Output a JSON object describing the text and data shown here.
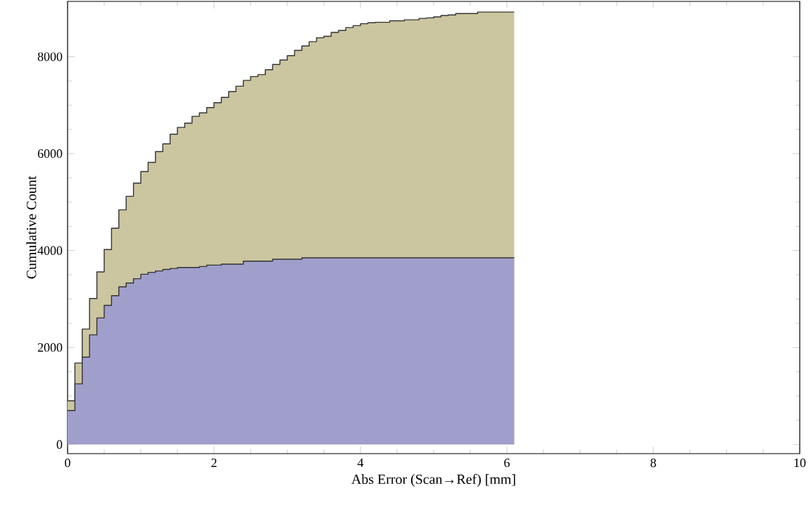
{
  "chart_data": {
    "type": "area",
    "xlabel": "Abs Error (Scan→Ref) [mm]",
    "ylabel": "Cumulative Count",
    "x": [
      0,
      0.1,
      0.1,
      0.2,
      0.2,
      0.3,
      0.3,
      0.4,
      0.4,
      0.5,
      0.5,
      0.6,
      0.6,
      0.7,
      0.7,
      0.8,
      0.8,
      0.9,
      0.9,
      1.0,
      1.0,
      1.1,
      1.1,
      1.2,
      1.2,
      1.3,
      1.3,
      1.4,
      1.4,
      1.5,
      1.5,
      1.6,
      1.6,
      1.7,
      1.7,
      1.8,
      1.8,
      1.9,
      1.9,
      2.0,
      2.0,
      2.1,
      2.1,
      2.2,
      2.2,
      2.3,
      2.3,
      2.4,
      2.4,
      2.5,
      2.5,
      2.6,
      2.6,
      2.7,
      2.7,
      2.8,
      2.8,
      2.9,
      2.9,
      3.0,
      3.0,
      3.1,
      3.1,
      3.2,
      3.2,
      3.3,
      3.3,
      3.4,
      3.4,
      3.5,
      3.5,
      3.6,
      3.6,
      3.7,
      3.7,
      3.8,
      3.8,
      3.9,
      3.9,
      4.0,
      4.0,
      4.1,
      4.1,
      4.2,
      4.2,
      4.3,
      4.3,
      4.4,
      4.4,
      4.5,
      4.5,
      4.6,
      4.6,
      4.7,
      4.7,
      4.8,
      4.8,
      4.9,
      4.9,
      5.0,
      5.0,
      5.1,
      5.1,
      5.2,
      5.2,
      5.3,
      5.3,
      5.4,
      5.4,
      5.5,
      5.5,
      5.6,
      5.6,
      5.7,
      5.7,
      5.8,
      5.8,
      5.9,
      5.9,
      6.0,
      6.0,
      6.1
    ],
    "series": [
      {
        "color": "#cbc5a0",
        "values": [
          900,
          900,
          1680,
          1680,
          2380,
          2380,
          3010,
          3010,
          3560,
          3560,
          4020,
          4020,
          4460,
          4460,
          4840,
          4840,
          5120,
          5120,
          5390,
          5390,
          5630,
          5630,
          5820,
          5820,
          6040,
          6040,
          6200,
          6200,
          6400,
          6400,
          6540,
          6540,
          6630,
          6630,
          6770,
          6770,
          6840,
          6840,
          6950,
          6950,
          7050,
          7050,
          7160,
          7160,
          7280,
          7280,
          7390,
          7390,
          7510,
          7510,
          7590,
          7590,
          7630,
          7630,
          7730,
          7730,
          7840,
          7840,
          7930,
          7930,
          8020,
          8020,
          8130,
          8130,
          8220,
          8220,
          8310,
          8310,
          8390,
          8390,
          8420,
          8420,
          8500,
          8500,
          8540,
          8540,
          8600,
          8600,
          8640,
          8640,
          8680,
          8680,
          8700,
          8700,
          8710,
          8710,
          8710,
          8710,
          8740,
          8740,
          8740,
          8740,
          8760,
          8760,
          8760,
          8760,
          8790,
          8790,
          8800,
          8800,
          8820,
          8820,
          8850,
          8850,
          8860,
          8860,
          8890,
          8890,
          8890,
          8890,
          8890,
          8890,
          8920,
          8920,
          8920,
          8920,
          8920,
          8920,
          8920,
          8920,
          8920,
          8920
        ]
      },
      {
        "color": "#a09fcc",
        "values": [
          700,
          700,
          1250,
          1250,
          1800,
          1800,
          2260,
          2260,
          2610,
          2610,
          2870,
          2870,
          3070,
          3070,
          3250,
          3250,
          3330,
          3330,
          3420,
          3420,
          3510,
          3510,
          3550,
          3550,
          3580,
          3580,
          3610,
          3610,
          3630,
          3630,
          3650,
          3650,
          3650,
          3650,
          3650,
          3650,
          3670,
          3670,
          3700,
          3700,
          3700,
          3700,
          3720,
          3720,
          3720,
          3720,
          3720,
          3720,
          3780,
          3780,
          3780,
          3780,
          3780,
          3780,
          3780,
          3780,
          3820,
          3820,
          3820,
          3820,
          3820,
          3820,
          3820,
          3820,
          3850,
          3850,
          3850,
          3850,
          3850,
          3850,
          3850,
          3850,
          3850,
          3850,
          3850,
          3850,
          3850,
          3850,
          3850,
          3850,
          3850,
          3850,
          3850,
          3850,
          3850,
          3850,
          3850,
          3850,
          3850,
          3850,
          3850,
          3850,
          3850,
          3850,
          3850,
          3850,
          3850,
          3850,
          3850,
          3850,
          3850,
          3850,
          3850,
          3850,
          3850,
          3850,
          3850,
          3850,
          3850,
          3850,
          3850,
          3850,
          3850,
          3850,
          3850,
          3850,
          3850,
          3850,
          3850,
          3850,
          3850,
          3850
        ]
      }
    ],
    "xlim": [
      0,
      10
    ],
    "ylim": [
      -190,
      9140
    ],
    "xticks": [
      0,
      2,
      4,
      6,
      8,
      10
    ],
    "yticks": [
      0,
      2000,
      4000,
      6000,
      8000
    ],
    "grid": false
  }
}
